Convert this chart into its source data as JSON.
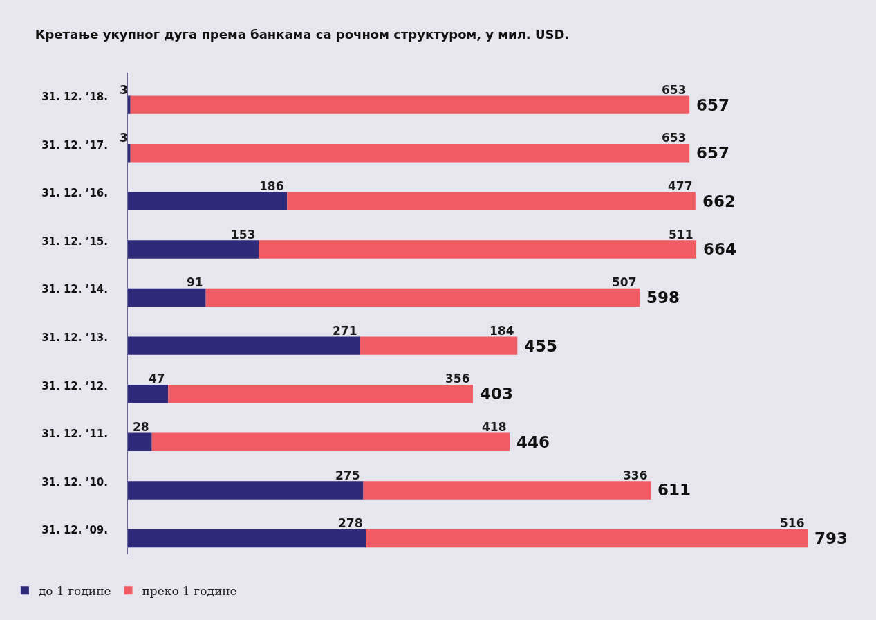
{
  "chart_data": {
    "type": "bar",
    "orientation": "horizontal",
    "stacked": true,
    "title": "Кретање укупног дуга према банкама са рочном структуром, у мил. USD.",
    "categories": [
      "31. 12. ’18.",
      "31. 12. ’17.",
      "31. 12. ’16.",
      "31. 12. ’15.",
      "31. 12. ’14.",
      "31. 12. ’13.",
      "31. 12. ’12.",
      "31. 12. ’11.",
      "31. 12. ’10.",
      "31. 12. ’09."
    ],
    "series": [
      {
        "name": "до 1 године",
        "color": "#2e2b7b",
        "values": [
          3,
          3,
          186,
          153,
          91,
          271,
          47,
          28,
          275,
          278
        ]
      },
      {
        "name": "преко 1 године",
        "color": "#f05c63",
        "values": [
          653,
          653,
          477,
          511,
          507,
          184,
          356,
          418,
          336,
          516
        ]
      }
    ],
    "data_labels": true,
    "totals": [
      "657",
      "657",
      "662",
      "664",
      "598",
      "455",
      "403",
      "446",
      "611",
      "793"
    ],
    "legend": "bottom left",
    "grid": false
  }
}
